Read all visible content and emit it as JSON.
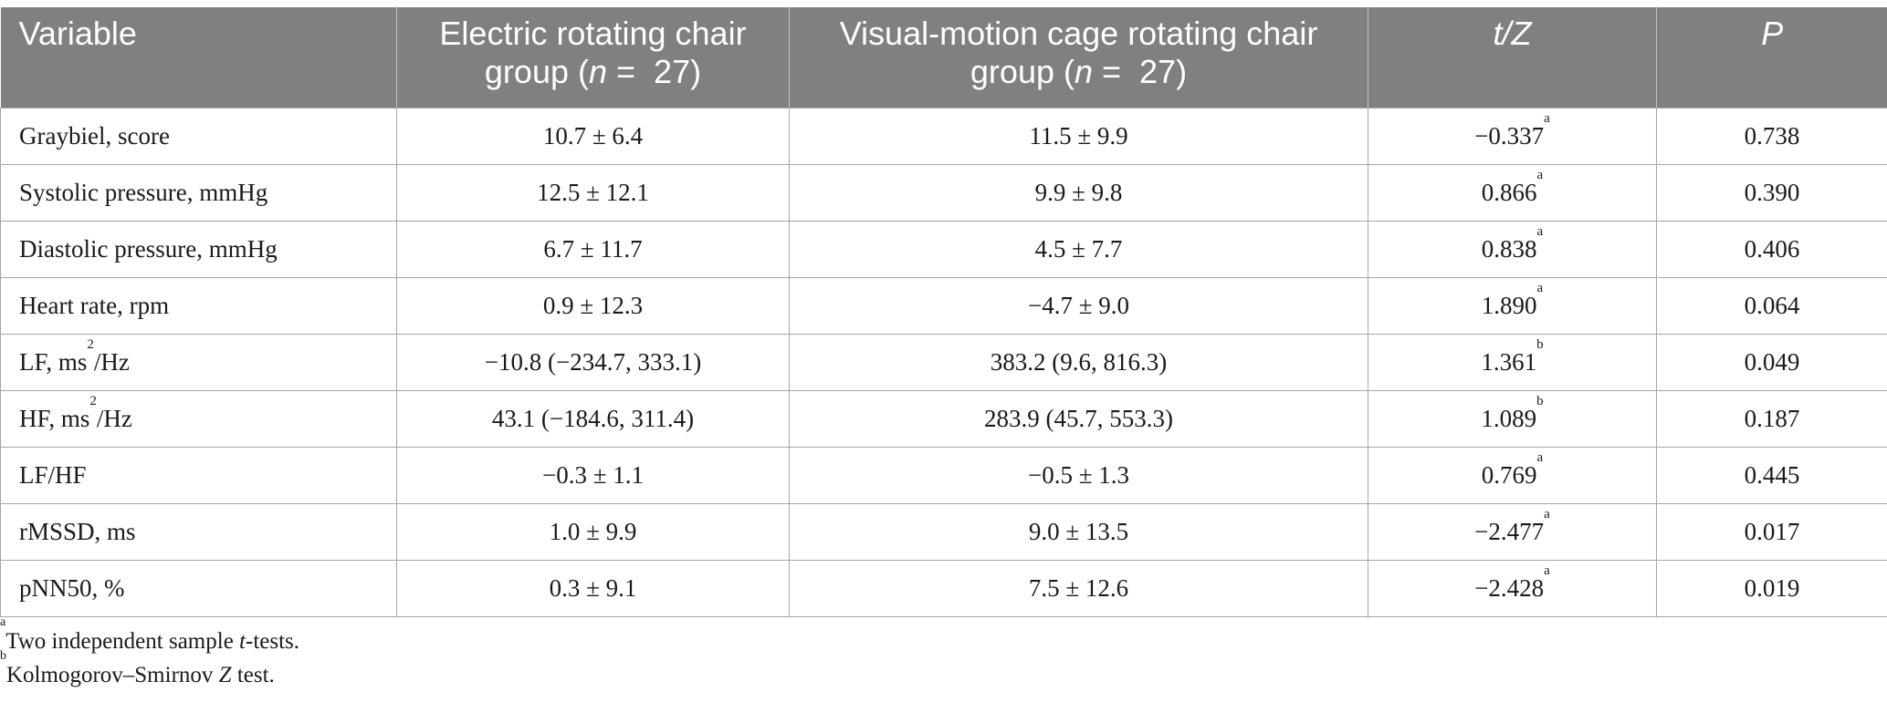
{
  "table": {
    "headers": {
      "variable": "Variable",
      "electric_line1": "Electric rotating chair",
      "electric_group": "group (",
      "electric_n": "n",
      "electric_eq": " =  27)",
      "visual_line1": "Visual-motion cage rotating chair",
      "visual_group": "group (",
      "visual_n": "n",
      "visual_eq": " =  27)",
      "tz": "t/Z",
      "p": "P"
    },
    "rows": [
      {
        "variable": "Graybiel, score",
        "var_sup": "",
        "var_suffix": "",
        "electric": "10.7 ± 6.4",
        "visual": "11.5 ± 9.9",
        "tz": "−0.337",
        "tz_note": "a",
        "p": "0.738"
      },
      {
        "variable": "Systolic pressure, mmHg",
        "var_sup": "",
        "var_suffix": "",
        "electric": "12.5 ± 12.1",
        "visual": "9.9 ± 9.8",
        "tz": "0.866",
        "tz_note": "a",
        "p": "0.390"
      },
      {
        "variable": "Diastolic pressure, mmHg",
        "var_sup": "",
        "var_suffix": "",
        "electric": "6.7 ± 11.7",
        "visual": "4.5 ± 7.7",
        "tz": "0.838",
        "tz_note": "a",
        "p": "0.406"
      },
      {
        "variable": "Heart rate, rpm",
        "var_sup": "",
        "var_suffix": "",
        "electric": "0.9 ± 12.3",
        "visual": "−4.7 ± 9.0",
        "tz": "1.890",
        "tz_note": "a",
        "p": "0.064"
      },
      {
        "variable": "LF, ms",
        "var_sup": "2",
        "var_suffix": "/Hz",
        "electric": "−10.8 (−234.7, 333.1)",
        "visual": "383.2 (9.6, 816.3)",
        "tz": "1.361",
        "tz_note": "b",
        "p": "0.049"
      },
      {
        "variable": "HF, ms",
        "var_sup": "2",
        "var_suffix": "/Hz",
        "electric": "43.1 (−184.6, 311.4)",
        "visual": "283.9 (45.7, 553.3)",
        "tz": "1.089",
        "tz_note": "b",
        "p": "0.187"
      },
      {
        "variable": "LF/HF",
        "var_sup": "",
        "var_suffix": "",
        "electric": "−0.3 ± 1.1",
        "visual": "−0.5 ± 1.3",
        "tz": "0.769",
        "tz_note": "a",
        "p": "0.445"
      },
      {
        "variable": "rMSSD, ms",
        "var_sup": "",
        "var_suffix": "",
        "electric": "1.0 ± 9.9",
        "visual": "9.0 ± 13.5",
        "tz": "−2.477",
        "tz_note": "a",
        "p": "0.017"
      },
      {
        "variable": "pNN50, %",
        "var_sup": "",
        "var_suffix": "",
        "electric": "0.3 ± 9.1",
        "visual": "7.5 ± 12.6",
        "tz": "−2.428",
        "tz_note": "a",
        "p": "0.019"
      }
    ]
  },
  "footnotes": [
    {
      "mark": "a",
      "pre": "Two independent sample ",
      "ital": "t",
      "post": "-tests."
    },
    {
      "mark": "b",
      "pre": "Kolmogorov–Smirnov ",
      "ital": "Z",
      "post": " test."
    }
  ]
}
